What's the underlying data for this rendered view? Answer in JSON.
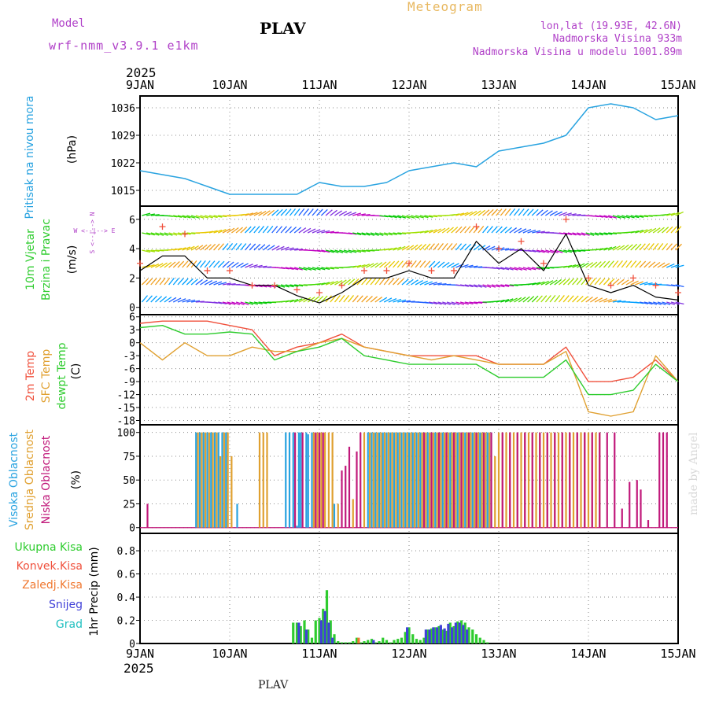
{
  "header": {
    "model_label": "Model",
    "model_name": "wrf-nmm_v3.9.1 e1km",
    "station": "PLAV",
    "title": "Meteogram",
    "coords": "lon,lat (19.93E, 42.6N)",
    "elevation": "Nadmorska Visina 933m",
    "model_elevation": "Nadmorska Visina u modelu 1001.89m",
    "year_top": "2025",
    "year_bottom": "2025",
    "footer": "PLAV",
    "watermark": "made by Angel",
    "wind_legend": "W <--|--> E",
    "wind_legend2": "S <--|--> N"
  },
  "colors": {
    "pressure": "#29a3e0",
    "temp2m": "#f0503c",
    "sfc": "#e0a030",
    "dewpt": "#2ecc2e",
    "high_cloud": "#29a3e0",
    "mid_cloud": "#e0a030",
    "low_cloud": "#c0187a",
    "total_rain": "#2ecc2e",
    "conv_rain": "#f0503c",
    "frz_rain": "#f07830",
    "snow": "#4040d8",
    "graupel": "#20c0c0",
    "label_purple": "#b040c8",
    "title_orange": "#e8b860"
  },
  "chart_data": [
    {
      "id": "pressure",
      "type": "line",
      "ylabel_main": "Pritisak na nivou mora",
      "ylabel_unit": "(hPa)",
      "x_ticks": [
        "9JAN",
        "10JAN",
        "11JAN",
        "12JAN",
        "13JAN",
        "14JAN",
        "15JAN"
      ],
      "y_ticks": [
        1015,
        1022,
        1029,
        1036
      ],
      "ylim": [
        1011,
        1039
      ],
      "grid": true,
      "x_hours": [
        0,
        6,
        12,
        18,
        24,
        30,
        36,
        42,
        48,
        54,
        60,
        66,
        72,
        78,
        84,
        90,
        96,
        102,
        108,
        114,
        120,
        126,
        132,
        138,
        144
      ],
      "values": [
        1020,
        1019,
        1018,
        1016,
        1014,
        1014,
        1014,
        1014,
        1017,
        1016,
        1016,
        1017,
        1020,
        1021,
        1022,
        1021,
        1025,
        1026,
        1027,
        1029,
        1036,
        1037,
        1036,
        1033,
        1034
      ]
    },
    {
      "id": "wind",
      "type": "line",
      "ylabel_main": "10m Vjetar",
      "ylabel_main2": "Brzina i Pravac",
      "ylabel_unit": "(m/s)",
      "y_ticks": [
        0,
        2,
        4,
        6
      ],
      "ylim": [
        -0.5,
        6.9
      ],
      "grid": true,
      "x_hours": [
        0,
        6,
        12,
        18,
        24,
        30,
        36,
        42,
        48,
        54,
        60,
        66,
        72,
        78,
        84,
        90,
        96,
        102,
        108,
        114,
        120,
        126,
        132,
        138,
        144
      ],
      "values": [
        2.5,
        3.5,
        3.5,
        2.0,
        2.0,
        1.5,
        1.5,
        0.8,
        0.3,
        1.0,
        2.0,
        2.0,
        2.5,
        2.0,
        2.0,
        4.5,
        3.0,
        4.0,
        2.5,
        5.0,
        1.5,
        1.0,
        1.5,
        0.7,
        0.5
      ],
      "gust_values": [
        3.0,
        5.5,
        5.0,
        2.5,
        2.5,
        1.5,
        1.5,
        1.2,
        1.0,
        1.5,
        2.5,
        2.5,
        3.0,
        2.5,
        2.5,
        5.5,
        4.0,
        4.5,
        3.0,
        6.0,
        2.0,
        1.5,
        2.0,
        1.5,
        1.0
      ]
    },
    {
      "id": "temperature",
      "type": "line",
      "ylabel_lines": [
        "2m Temp",
        "SFC Temp",
        "dewpt Temp"
      ],
      "ylabel_unit": "(C)",
      "y_ticks": [
        6,
        3,
        0,
        -3,
        -6,
        -9,
        -12,
        -15,
        -18
      ],
      "ylim": [
        -19,
        6.5
      ],
      "grid": true,
      "x_hours": [
        0,
        6,
        12,
        18,
        24,
        30,
        36,
        42,
        48,
        54,
        60,
        66,
        72,
        78,
        84,
        90,
        96,
        102,
        108,
        114,
        120,
        126,
        132,
        138,
        144
      ],
      "series": [
        {
          "name": "2m Temp",
          "color_key": "temp2m",
          "values": [
            4.5,
            5,
            5,
            5,
            4,
            3,
            -3,
            -1,
            0,
            2,
            -1,
            -2,
            -3,
            -3,
            -3,
            -3,
            -5,
            -5,
            -5,
            -1,
            -9,
            -9,
            -8,
            -4,
            -9
          ]
        },
        {
          "name": "SFC Temp",
          "color_key": "sfc",
          "values": [
            0,
            -4,
            0,
            -3,
            -3,
            -1,
            -2,
            -2,
            0,
            1,
            -1,
            -2,
            -3,
            -4,
            -3,
            -4,
            -5,
            -5,
            -5,
            -2,
            -16,
            -17,
            -16,
            -3,
            -9
          ]
        },
        {
          "name": "dewpt Temp",
          "color_key": "dewpt",
          "values": [
            3.5,
            4,
            2,
            2,
            2.5,
            2,
            -4,
            -2,
            -1,
            1,
            -3,
            -4,
            -5,
            -5,
            -5,
            -5,
            -8,
            -8,
            -8,
            -4,
            -12,
            -12,
            -11,
            -5,
            -9
          ]
        }
      ]
    },
    {
      "id": "clouds",
      "type": "bar",
      "ylabel_lines": [
        "Visoka Oblacnost",
        "Srednja Oblacnost",
        "Niska Oblacnost"
      ],
      "ylabel_unit": "(%)",
      "y_ticks": [
        0,
        25,
        50,
        75,
        100
      ],
      "ylim": [
        -6,
        108
      ],
      "grid": true,
      "series": [
        {
          "name": "Visoka Oblacnost",
          "color_key": "high_cloud",
          "hours": [
            15,
            16,
            17,
            18,
            19,
            20,
            21,
            22,
            23,
            26,
            39,
            40,
            41,
            42,
            42.5,
            43,
            44.5,
            45,
            46,
            52,
            61,
            62,
            63,
            64,
            65,
            66,
            67,
            68,
            69,
            70,
            71,
            72,
            73,
            74,
            75,
            76,
            77,
            78,
            79,
            80,
            81,
            82,
            83,
            84,
            85,
            86,
            87,
            88,
            89,
            90,
            91,
            92,
            93,
            94
          ],
          "values": [
            100,
            100,
            100,
            100,
            100,
            100,
            100,
            100,
            100,
            25,
            100,
            100,
            100,
            2,
            100,
            100,
            100,
            98,
            100,
            25,
            100,
            100,
            100,
            100,
            100,
            100,
            100,
            100,
            100,
            100,
            100,
            100,
            100,
            100,
            100,
            100,
            100,
            100,
            100,
            100,
            100,
            100,
            100,
            100,
            100,
            100,
            100,
            100,
            100,
            100,
            100,
            100,
            100,
            100
          ]
        },
        {
          "name": "Srednja Oblacnost",
          "color_key": "mid_cloud",
          "hours": [
            15.5,
            16.5,
            17.5,
            18.5,
            19.5,
            20.5,
            21.5,
            22.5,
            23.5,
            24.5,
            32,
            33,
            34,
            46.5,
            47.5,
            48.5,
            49.5,
            50.5,
            51.5,
            53,
            57,
            60,
            61.5,
            62.5,
            63.5,
            64.5,
            65.5,
            66.5,
            67.5,
            68.5,
            69.5,
            70.5,
            71.5,
            72.5,
            73.5,
            74.5,
            75.5,
            76.5,
            77.5,
            78.5,
            79.5,
            80.5,
            81.5,
            82.5,
            83.5,
            84.5,
            85.5,
            86.5,
            87.5,
            88.5,
            89.5,
            90.5,
            91.5,
            92.5,
            93.5,
            95,
            96,
            97,
            98,
            99,
            100,
            101,
            102,
            103,
            104,
            105,
            106,
            107,
            108,
            109,
            110,
            111,
            112,
            113,
            114,
            115,
            116,
            117,
            118,
            119,
            120,
            121,
            122,
            123
          ],
          "values": [
            100,
            100,
            100,
            100,
            100,
            100,
            75,
            100,
            100,
            75,
            100,
            100,
            100,
            100,
            100,
            100,
            100,
            100,
            100,
            25,
            30,
            100,
            100,
            100,
            100,
            100,
            100,
            100,
            100,
            100,
            100,
            100,
            100,
            100,
            100,
            100,
            100,
            100,
            100,
            100,
            100,
            100,
            100,
            100,
            100,
            100,
            100,
            100,
            100,
            100,
            100,
            100,
            100,
            100,
            100,
            75,
            100,
            100,
            100,
            100,
            100,
            100,
            100,
            100,
            100,
            100,
            100,
            100,
            100,
            100,
            100,
            100,
            100,
            100,
            100,
            100,
            100,
            100,
            100,
            100,
            100,
            100,
            100,
            100
          ]
        },
        {
          "name": "Niska Oblacnost",
          "color_key": "low_cloud",
          "hours": [
            2,
            41.5,
            43.5,
            47,
            48,
            49,
            54,
            55,
            56,
            58,
            59,
            76,
            78,
            80,
            82,
            84,
            86,
            88,
            90,
            92,
            94,
            97,
            99,
            101,
            103,
            105,
            107,
            109,
            111,
            113,
            115,
            117,
            119,
            121,
            123,
            125,
            127,
            129,
            131,
            133,
            134,
            136,
            139,
            140,
            141
          ],
          "values": [
            25,
            100,
            100,
            100,
            100,
            100,
            60,
            65,
            85,
            80,
            100,
            100,
            100,
            100,
            100,
            100,
            100,
            100,
            100,
            100,
            100,
            100,
            100,
            100,
            100,
            100,
            100,
            100,
            100,
            100,
            100,
            100,
            100,
            100,
            100,
            100,
            100,
            20,
            48,
            50,
            40,
            8,
            100,
            100,
            100
          ]
        }
      ]
    },
    {
      "id": "precip",
      "type": "bar",
      "ylabel_unit": "1hr Precip (mm)",
      "legend": [
        "Ukupna Kisa",
        "Konvek.Kisa",
        "Zaledj.Kisa",
        "Snijeg",
        "Grad"
      ],
      "y_ticks": [
        0,
        0.2,
        0.4,
        0.6,
        0.8
      ],
      "ylim": [
        0,
        0.95
      ],
      "grid": true,
      "series": [
        {
          "name": "Ukupna Kisa",
          "color_key": "total_rain",
          "hours": [
            41,
            42,
            43,
            44,
            45,
            46,
            47,
            48,
            49,
            50,
            51,
            52,
            53,
            54,
            55,
            56,
            57,
            58,
            59,
            60,
            61,
            62,
            63,
            64,
            65,
            66,
            67,
            68,
            69,
            70,
            71,
            72,
            73,
            74,
            75,
            76,
            77,
            78,
            79,
            80,
            81,
            82,
            83,
            84,
            85,
            86,
            87,
            88,
            89,
            90,
            91,
            92,
            93
          ],
          "values": [
            0.18,
            0.18,
            0.15,
            0.2,
            0.12,
            0.05,
            0.2,
            0.22,
            0.3,
            0.46,
            0.2,
            0.08,
            0.02,
            0.01,
            0.01,
            0.01,
            0.02,
            0.05,
            0.01,
            0.02,
            0.03,
            0.04,
            0.01,
            0.02,
            0.05,
            0.03,
            0.01,
            0.03,
            0.04,
            0.05,
            0.1,
            0.14,
            0.08,
            0.04,
            0.03,
            0.05,
            0.12,
            0.13,
            0.14,
            0.15,
            0.12,
            0.11,
            0.18,
            0.15,
            0.19,
            0.2,
            0.18,
            0.14,
            0.12,
            0.08,
            0.05,
            0.03,
            0.01
          ]
        },
        {
          "name": "Snijeg",
          "color_key": "snow",
          "hours": [
            42.5,
            44.5,
            48.5,
            49.5,
            50.5,
            51.5,
            62.5,
            71.5,
            76.5,
            77.5,
            78.5,
            79.5,
            80.5,
            81.5,
            82.5,
            83.5,
            84.5,
            85.5,
            86.5,
            87.5
          ],
          "values": [
            0.18,
            0.12,
            0.2,
            0.28,
            0.18,
            0.05,
            0.03,
            0.14,
            0.12,
            0.12,
            0.14,
            0.14,
            0.16,
            0.13,
            0.17,
            0.14,
            0.18,
            0.18,
            0.16,
            0.12
          ]
        },
        {
          "name": "Zaledj.Kisa",
          "color_key": "frz_rain",
          "hours": [
            58.5
          ],
          "values": [
            0.05
          ]
        }
      ]
    }
  ]
}
